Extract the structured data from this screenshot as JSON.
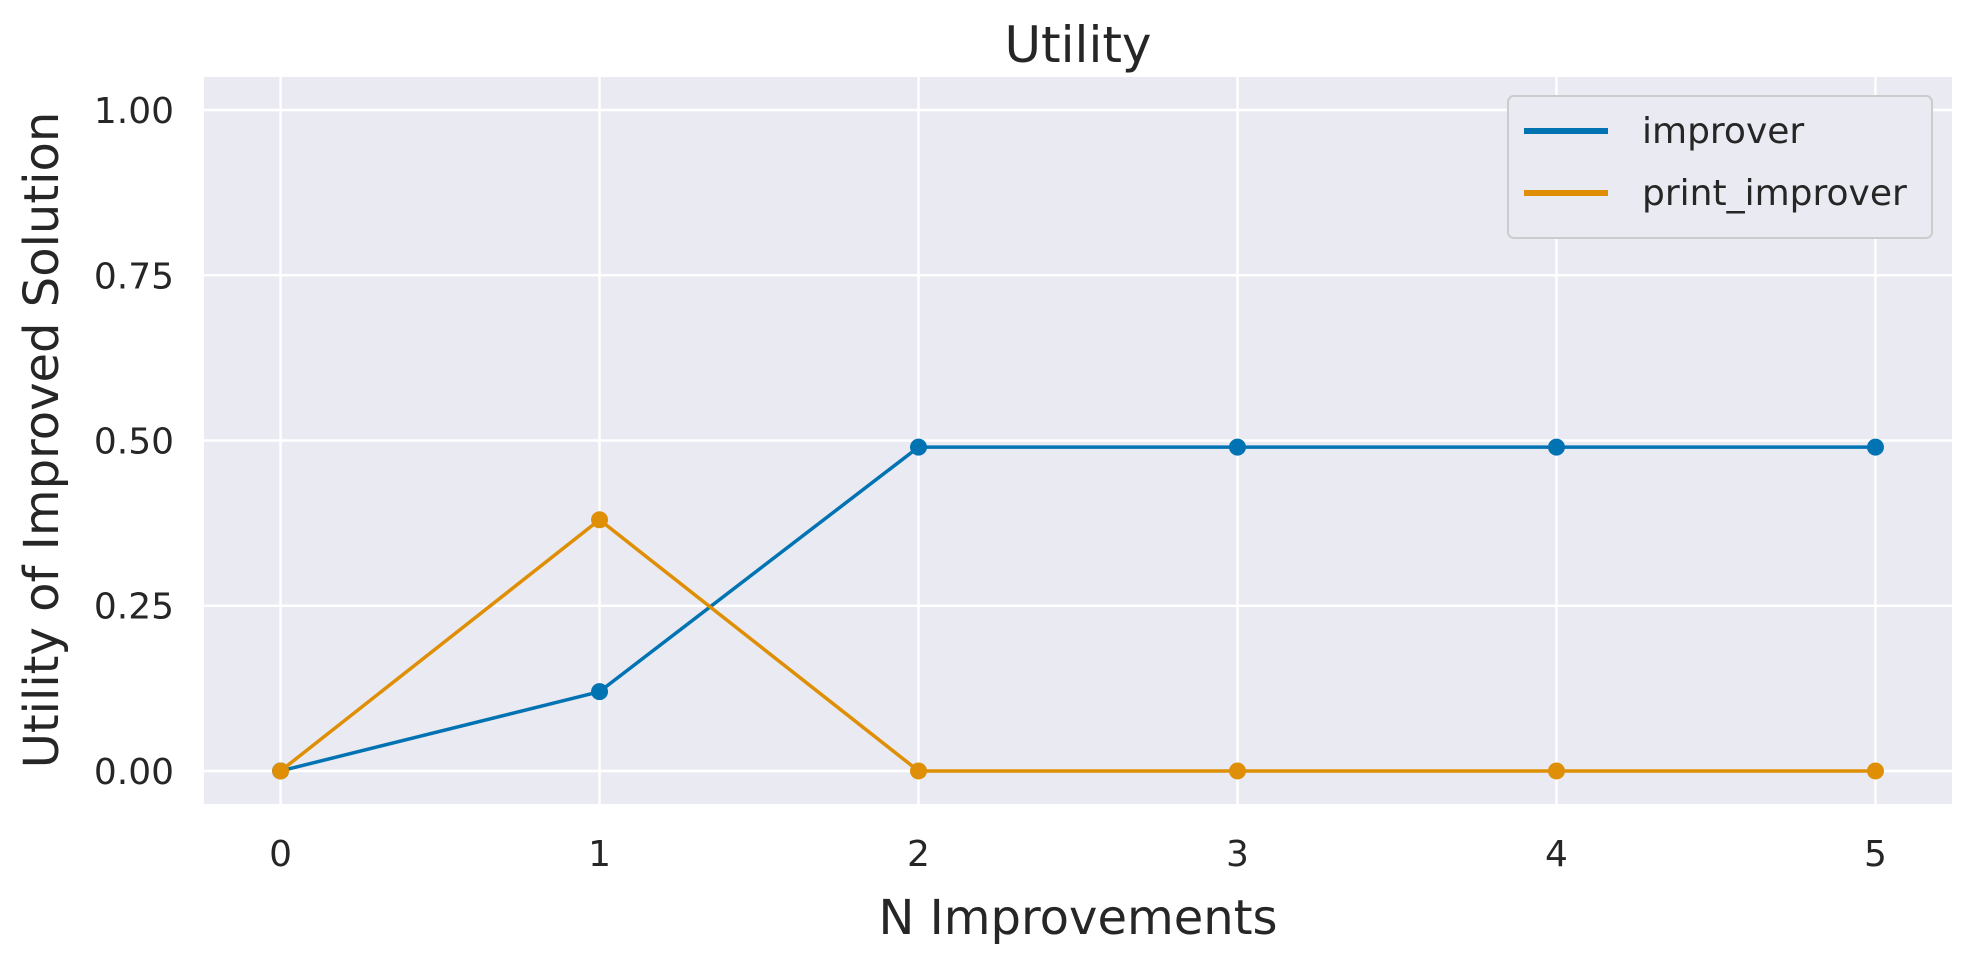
{
  "chart_data": {
    "type": "line",
    "title": "Utility",
    "xlabel": "N Improvements",
    "ylabel": "Utility of Improved Solution",
    "x": [
      0,
      1,
      2,
      3,
      4,
      5
    ],
    "xticks": [
      "0",
      "1",
      "2",
      "3",
      "4",
      "5"
    ],
    "xlim": [
      -0.24,
      5.24
    ],
    "ylim": [
      -0.05,
      1.05
    ],
    "yticks": [
      "0.00",
      "0.25",
      "0.50",
      "0.75",
      "1.00"
    ],
    "grid": true,
    "legend_position": "top-right",
    "background_color": "#eaeaf2",
    "grid_color": "#ffffff",
    "series": [
      {
        "name": "improver",
        "color": "#0173b2",
        "values": [
          0.0,
          0.12,
          0.49,
          0.49,
          0.49,
          0.49
        ]
      },
      {
        "name": "print_improver",
        "color": "#de8f05",
        "values": [
          0.0,
          0.38,
          0.0,
          0.0,
          0.0,
          0.0
        ]
      }
    ]
  }
}
